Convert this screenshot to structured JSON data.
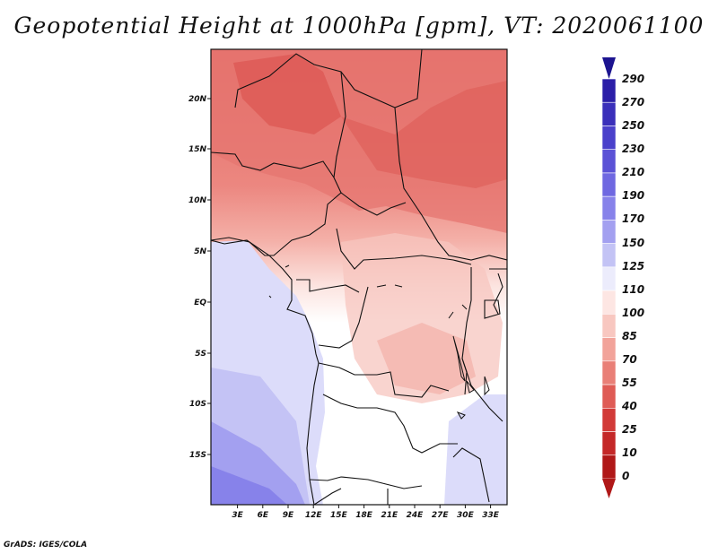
{
  "map": {
    "title": "Geopotential Height at 1000hPa [gpm], VT: 2020061100",
    "credit": "GrADS: IGES/COLA",
    "lon_labels": [
      "3E",
      "6E",
      "9E",
      "12E",
      "15E",
      "18E",
      "21E",
      "24E",
      "27E",
      "30E",
      "33E"
    ],
    "lat_labels": [
      "20N",
      "15N",
      "10N",
      "5N",
      "EQ",
      "5S",
      "10S",
      "15S"
    ]
  },
  "colorbar": {
    "labels": [
      "290",
      "270",
      "250",
      "230",
      "210",
      "190",
      "170",
      "150",
      "125",
      "110",
      "100",
      "85",
      "70",
      "55",
      "40",
      "25",
      "10",
      "0"
    ],
    "colors": [
      "#1c1490",
      "#2b1ea8",
      "#3a2fba",
      "#4a40cb",
      "#5b52d6",
      "#6f68e1",
      "#8782ea",
      "#a3a0f0",
      "#c3c3f5",
      "#ececfc",
      "#fde6e3",
      "#f8c7c0",
      "#f2a39a",
      "#e97f77",
      "#df5b55",
      "#d23a38",
      "#c42828",
      "#b01818"
    ]
  },
  "legend": {
    "cb_0_1_2": "290 270 250",
    "cb_3_4_5": "230 210 190",
    "cb_6_7_8": "170 150 125",
    "cb_9_10_11": "110 100 85",
    "cb_12_13_14": "70 55 40",
    "cb_15_16_17": "25 10 0"
  }
}
